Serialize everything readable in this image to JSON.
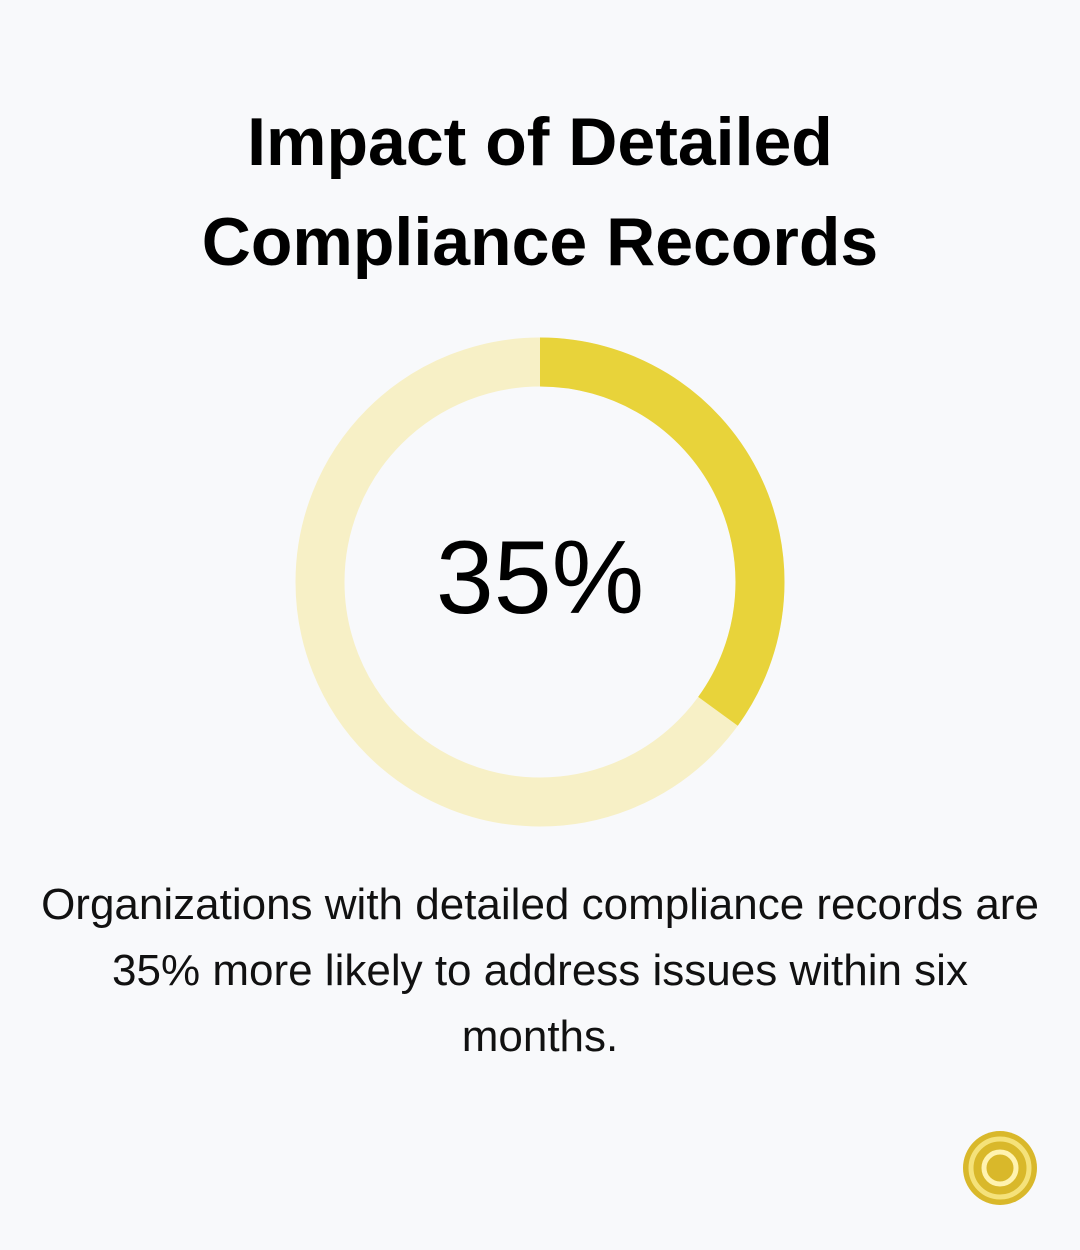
{
  "chart_data": {
    "type": "donut",
    "title": "Impact of Detailed Compliance Records",
    "values": [
      35
    ],
    "value_labels": [
      "35%"
    ],
    "ylim": [
      0,
      100
    ],
    "color": "#e8d33a",
    "track_color": "#f7f0c6",
    "description": "Organizations with detailed compliance records are 35% more likely to address issues within six months."
  }
}
